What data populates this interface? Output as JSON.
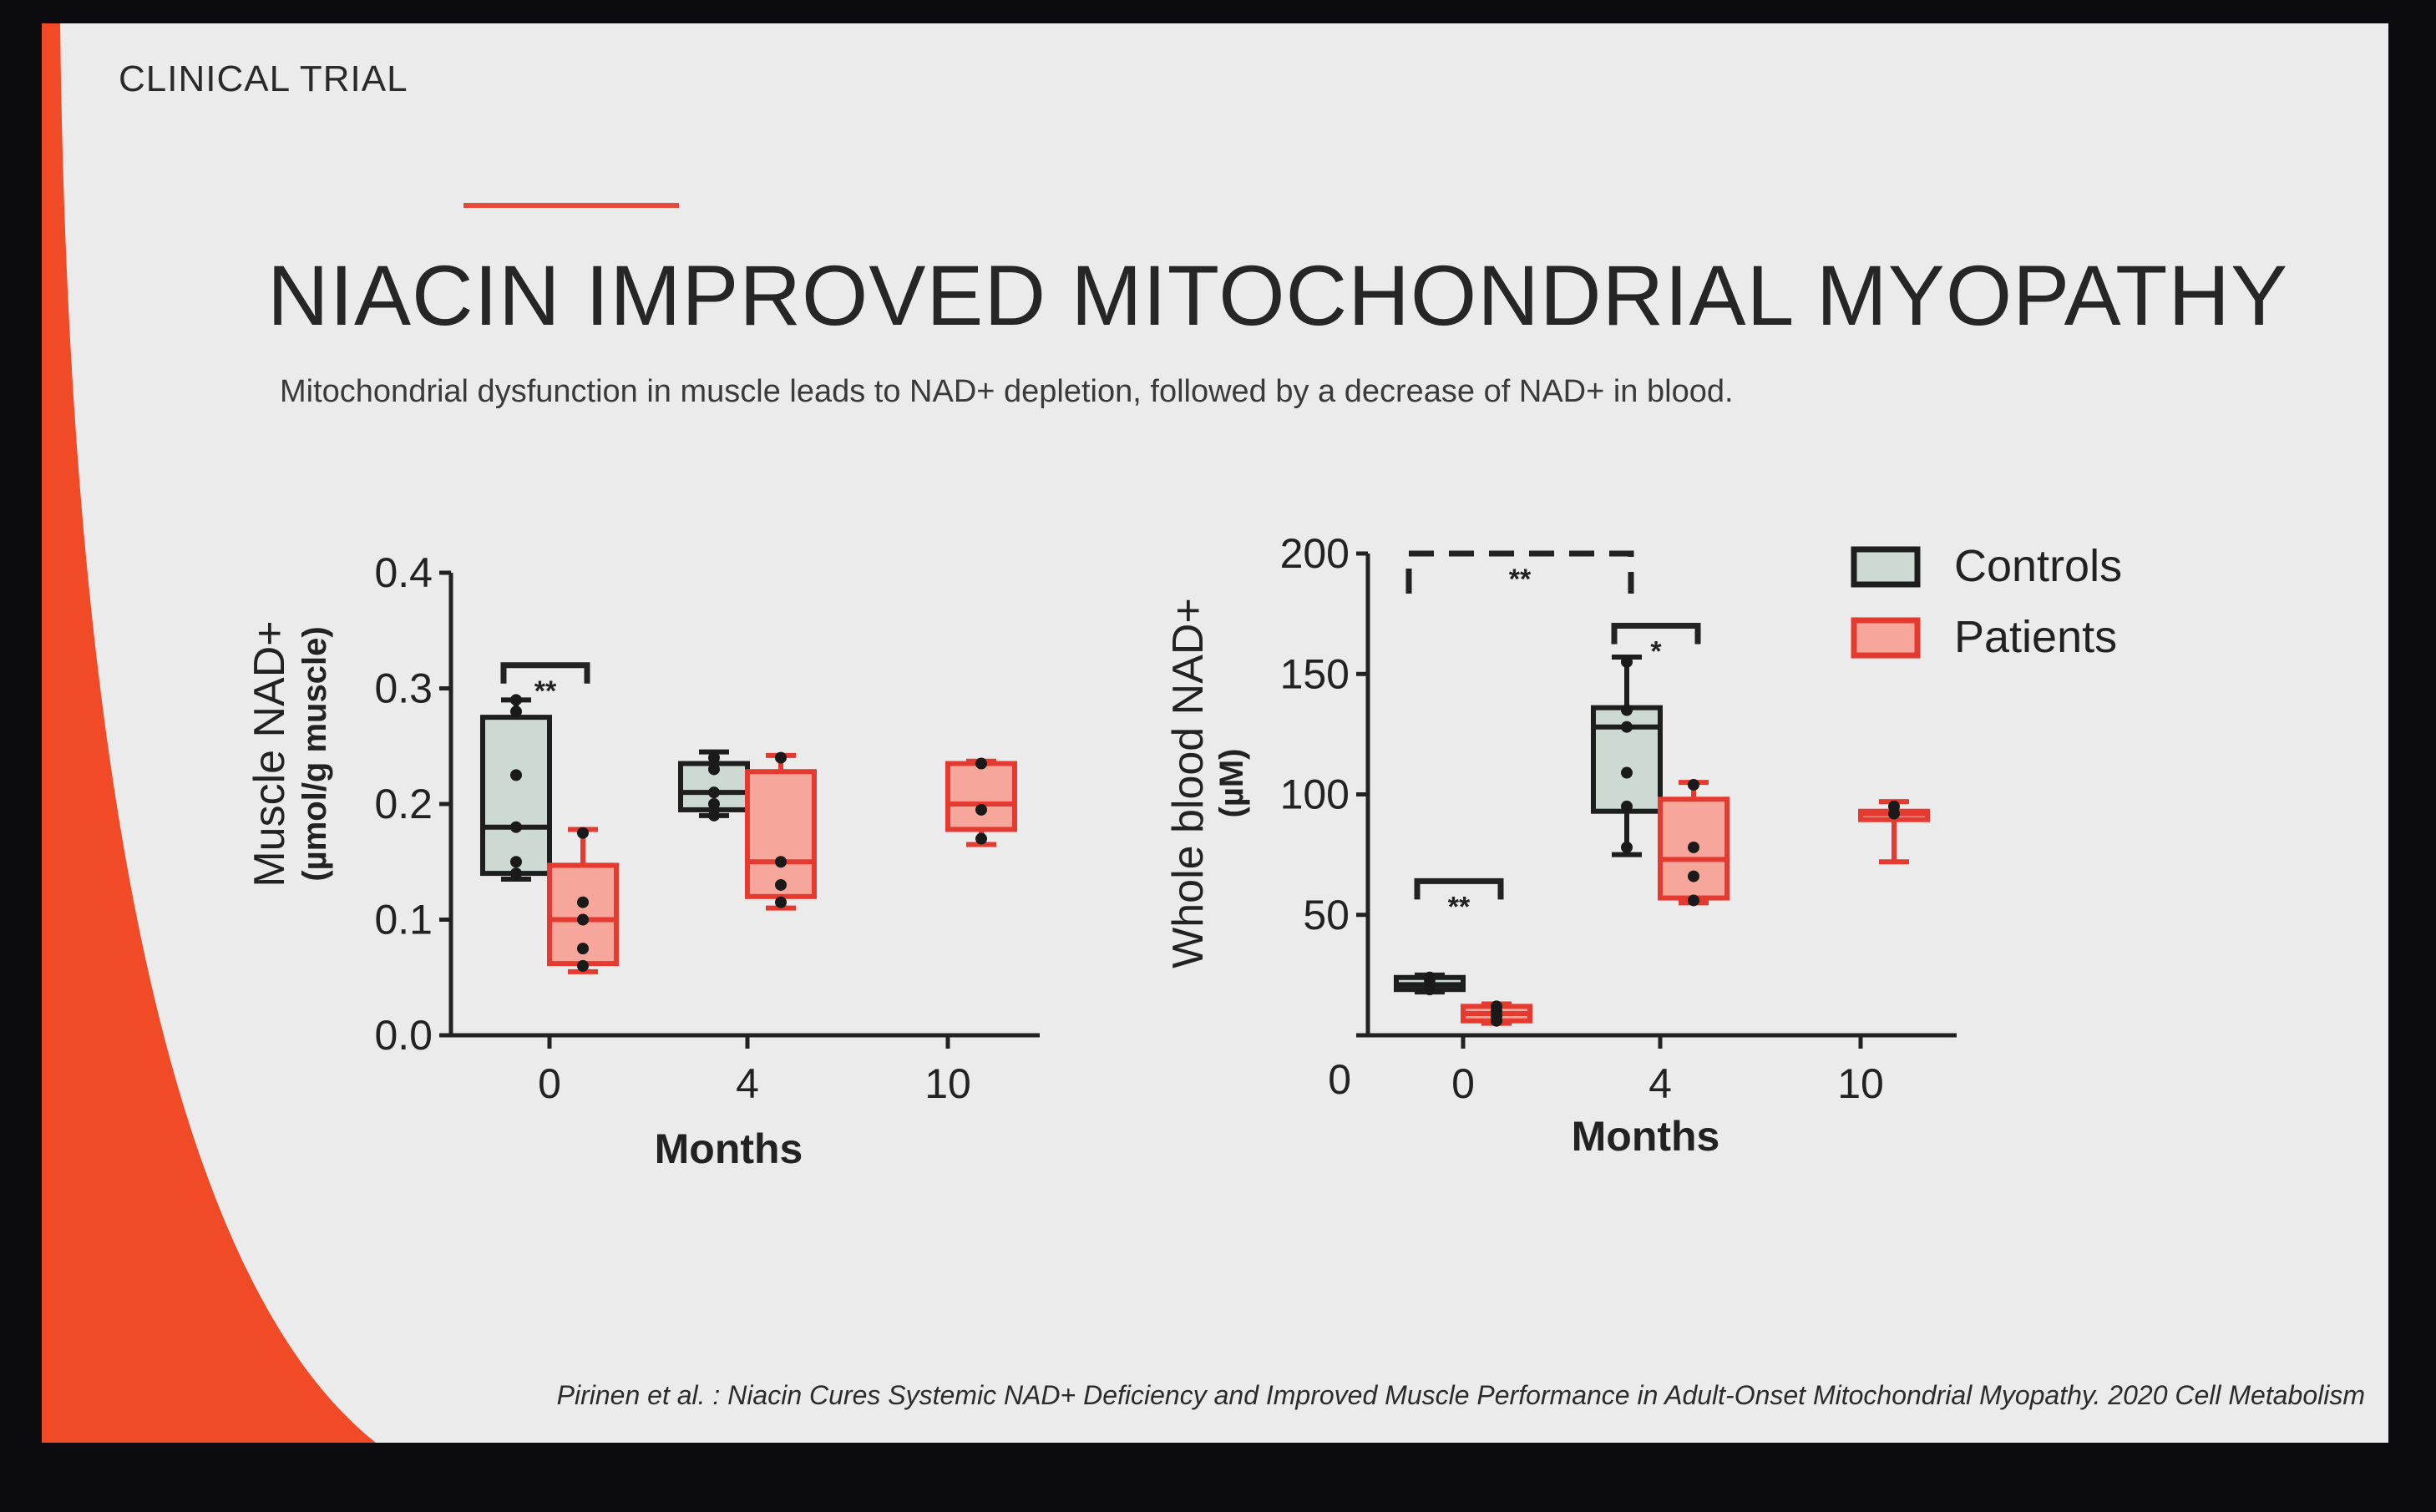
{
  "slide": {
    "section_label": "CLINICAL TRIAL",
    "title": "NIACIN IMPROVED MITOCHONDRIAL MYOPATHY",
    "subtitle": "Mitochondrial dysfunction in muscle leads to NAD+ depletion, followed by a decrease of NAD+ in blood.",
    "citation": "Pirinen et al. : Niacin Cures Systemic NAD+ Deficiency and Improved Muscle Performance in Adult-Onset Mitochondrial Myopathy. 2020 Cell Metabolism",
    "accent_color": "#f04b26"
  },
  "legend": [
    {
      "label": "Controls",
      "fill": "#cdd9d3",
      "stroke": "#1e1e1e"
    },
    {
      "label": "Patients",
      "fill": "#f7a69b",
      "stroke": "#e53a30"
    }
  ],
  "chart_data": [
    {
      "type": "box",
      "title": "",
      "ylabel": "Muscle NAD+",
      "yunit": "(µmol/g muscle)",
      "xlabel": "Months",
      "categories": [
        "0",
        "4",
        "10"
      ],
      "ylim": [
        0,
        0.4
      ],
      "yticks": [
        "0.0",
        "0.1",
        "0.2",
        "0.3",
        "0.4"
      ],
      "yticks_values": [
        0,
        0.1,
        0.2,
        0.3,
        0.4
      ],
      "series": [
        {
          "name": "Controls",
          "boxes": [
            {
              "category": "0",
              "min": 0.135,
              "q1": 0.14,
              "median": 0.18,
              "q3": 0.275,
              "max": 0.29,
              "points": [
                0.14,
                0.15,
                0.18,
                0.225,
                0.28,
                0.29
              ]
            },
            {
              "category": "4",
              "min": 0.19,
              "q1": 0.195,
              "median": 0.21,
              "q3": 0.235,
              "max": 0.245,
              "points": [
                0.19,
                0.2,
                0.21,
                0.23,
                0.24
              ]
            }
          ]
        },
        {
          "name": "Patients",
          "boxes": [
            {
              "category": "0",
              "min": 0.055,
              "q1": 0.062,
              "median": 0.1,
              "q3": 0.147,
              "max": 0.178,
              "points": [
                0.06,
                0.075,
                0.1,
                0.115,
                0.175
              ]
            },
            {
              "category": "4",
              "min": 0.11,
              "q1": 0.12,
              "median": 0.15,
              "q3": 0.228,
              "max": 0.242,
              "points": [
                0.115,
                0.13,
                0.15,
                0.24
              ]
            },
            {
              "category": "10",
              "min": 0.165,
              "q1": 0.178,
              "median": 0.2,
              "q3": 0.235,
              "max": 0.237,
              "points": [
                0.17,
                0.195,
                0.235
              ]
            }
          ]
        }
      ],
      "annotations": [
        {
          "text": "**",
          "between": [
            "0",
            "0"
          ],
          "y": 0.32
        }
      ]
    },
    {
      "type": "box",
      "title": "",
      "ylabel": "Whole blood NAD+",
      "yunit": "(µM)",
      "xlabel": "Months",
      "categories": [
        "0",
        "4",
        "10"
      ],
      "ylim": [
        0,
        200
      ],
      "yticks": [
        "0",
        "50",
        "100",
        "150",
        "200"
      ],
      "yticks_values": [
        0,
        50,
        100,
        150,
        200
      ],
      "series": [
        {
          "name": "Controls",
          "boxes": [
            {
              "category": "0",
              "min": 18,
              "q1": 19,
              "median": 21,
              "q3": 24,
              "max": 25,
              "points": [
                19,
                21,
                23,
                24
              ]
            },
            {
              "category": "4",
              "min": 75,
              "q1": 93,
              "median": 128,
              "q3": 136,
              "max": 157,
              "points": [
                78,
                95,
                109,
                128,
                135,
                155
              ]
            }
          ]
        },
        {
          "name": "Patients",
          "boxes": [
            {
              "category": "0",
              "min": 5,
              "q1": 6,
              "median": 9,
              "q3": 12,
              "max": 13,
              "points": [
                6,
                8,
                10,
                12
              ]
            },
            {
              "category": "4",
              "min": 55,
              "q1": 57,
              "median": 73,
              "q3": 98,
              "max": 105,
              "points": [
                56,
                66,
                78,
                104
              ]
            },
            {
              "category": "10",
              "min": 72,
              "q1": 92,
              "median": 92,
              "q3": 93,
              "max": 97,
              "points": [
                92,
                95
              ]
            }
          ]
        }
      ],
      "annotations": [
        {
          "text": "**",
          "between": [
            "0",
            "0"
          ],
          "y": 64,
          "style": "solid"
        },
        {
          "text": "*",
          "between": [
            "4",
            "4"
          ],
          "y": 170,
          "style": "solid"
        },
        {
          "text": "**",
          "between": [
            "0",
            "4"
          ],
          "y": 200,
          "style": "dashed"
        }
      ]
    }
  ]
}
